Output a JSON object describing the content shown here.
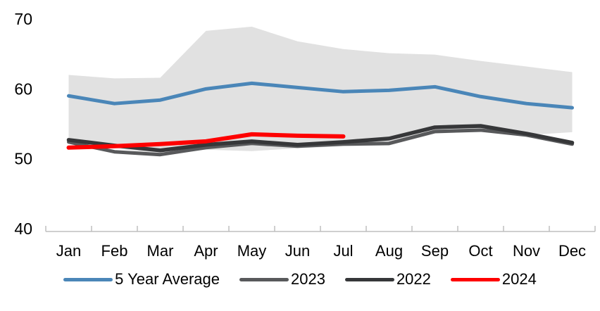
{
  "chart_data": {
    "type": "line",
    "title": "",
    "xlabel": "",
    "ylabel": "",
    "categories": [
      "Jan",
      "Feb",
      "Mar",
      "Apr",
      "May",
      "Jun",
      "Jul",
      "Aug",
      "Sep",
      "Oct",
      "Nov",
      "Dec"
    ],
    "ylim": [
      40,
      70
    ],
    "yticks": [
      "40",
      "50",
      "60",
      "70"
    ],
    "ytick_values": [
      40,
      50,
      60,
      70
    ],
    "grid": false,
    "legend_position": "bottom",
    "background_color": "#ffffff",
    "band": {
      "name": "5-year-range-band",
      "color": "#E1E1E1",
      "max": [
        62.0,
        61.5,
        61.6,
        68.3,
        68.9,
        66.8,
        65.7,
        65.1,
        64.9,
        64.0,
        63.2,
        62.4
      ],
      "min": [
        52.8,
        51.5,
        50.7,
        51.3,
        51.1,
        51.5,
        51.8,
        51.9,
        53.6,
        53.9,
        53.4,
        53.8
      ]
    },
    "series": [
      {
        "name": "5 Year Average",
        "color": "#4A86B8",
        "width": 5,
        "values": [
          59.0,
          57.9,
          58.4,
          60.0,
          60.8,
          60.2,
          59.6,
          59.8,
          60.3,
          58.9,
          57.9,
          57.3
        ]
      },
      {
        "name": "2023",
        "color": "#58595B",
        "width": 5,
        "values": [
          52.4,
          51.0,
          50.6,
          51.6,
          52.2,
          51.8,
          52.1,
          52.2,
          53.9,
          54.1,
          53.4,
          52.1
        ]
      },
      {
        "name": "2022",
        "color": "#363739",
        "width": 5.5,
        "values": [
          52.7,
          51.9,
          51.2,
          52.0,
          52.5,
          52.0,
          52.4,
          52.9,
          54.5,
          54.7,
          53.6,
          52.3
        ]
      },
      {
        "name": "2024",
        "color": "#FE0000",
        "width": 6,
        "values": [
          51.6,
          51.8,
          52.1,
          52.5,
          53.5,
          53.3,
          53.2
        ]
      }
    ],
    "axis": {
      "line_color": "#BFBFBF",
      "text_color": "#000000"
    }
  }
}
